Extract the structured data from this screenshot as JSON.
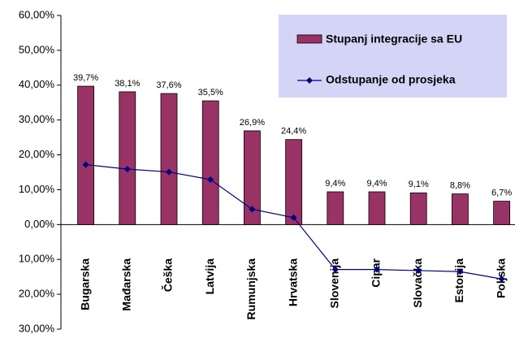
{
  "chart_data": {
    "type": "bar",
    "categories": [
      "Bugarska",
      "Mađarska",
      "Češka",
      "Latvija",
      "Rumunjska",
      "Hrvatska",
      "Slovenija",
      "Cipar",
      "Slovačka",
      "Estonija",
      "Poljska"
    ],
    "series": [
      {
        "name": "Stupanj integracije sa EU",
        "type": "bar",
        "color": "#993366",
        "values": [
          39.7,
          38.1,
          37.6,
          35.5,
          26.9,
          24.4,
          9.4,
          9.4,
          9.1,
          8.8,
          6.7
        ],
        "value_labels": [
          "39,7%",
          "38,1%",
          "37,6%",
          "35,5%",
          "26,9%",
          "24,4%",
          "9,4%",
          "9,4%",
          "9,1%",
          "8,8%",
          "6,7%"
        ]
      },
      {
        "name": "Odstupanje od prosjeka",
        "type": "line",
        "color": "#000080",
        "values": [
          17.2,
          15.9,
          15.1,
          12.9,
          4.4,
          2.0,
          -12.9,
          -12.9,
          -13.2,
          -13.5,
          -15.6
        ]
      }
    ],
    "ylim": [
      -30,
      60
    ],
    "yticks": [
      {
        "value": -30,
        "label": "30,00%"
      },
      {
        "value": -20,
        "label": "20,00%"
      },
      {
        "value": -10,
        "label": "10,00%"
      },
      {
        "value": 0,
        "label": "0,00%"
      },
      {
        "value": 10,
        "label": "10,00%"
      },
      {
        "value": 20,
        "label": "20,00%"
      },
      {
        "value": 30,
        "label": "30,00%"
      },
      {
        "value": 40,
        "label": "40,00%"
      },
      {
        "value": 50,
        "label": "50,00%"
      },
      {
        "value": 60,
        "label": "60,00%"
      }
    ],
    "legend": "top-right"
  }
}
